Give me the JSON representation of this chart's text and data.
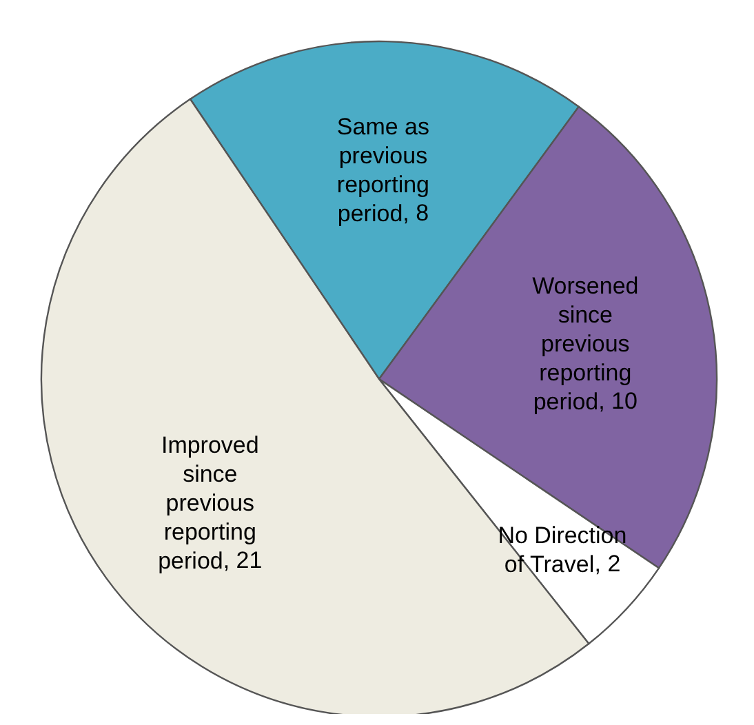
{
  "chart_data": {
    "type": "pie",
    "categories": [
      "Same as previous reporting period",
      "Worsened since previous reporting period",
      "No Direction of Travel",
      "Improved since previous reporting period"
    ],
    "values": [
      8,
      10,
      2,
      21
    ],
    "colors": [
      "#4bacc6",
      "#8064a2",
      "#ffffff",
      "#eeece1"
    ],
    "value_labels": [
      ", 8",
      ", 10",
      ", 2",
      ", 21"
    ],
    "legend": false
  }
}
